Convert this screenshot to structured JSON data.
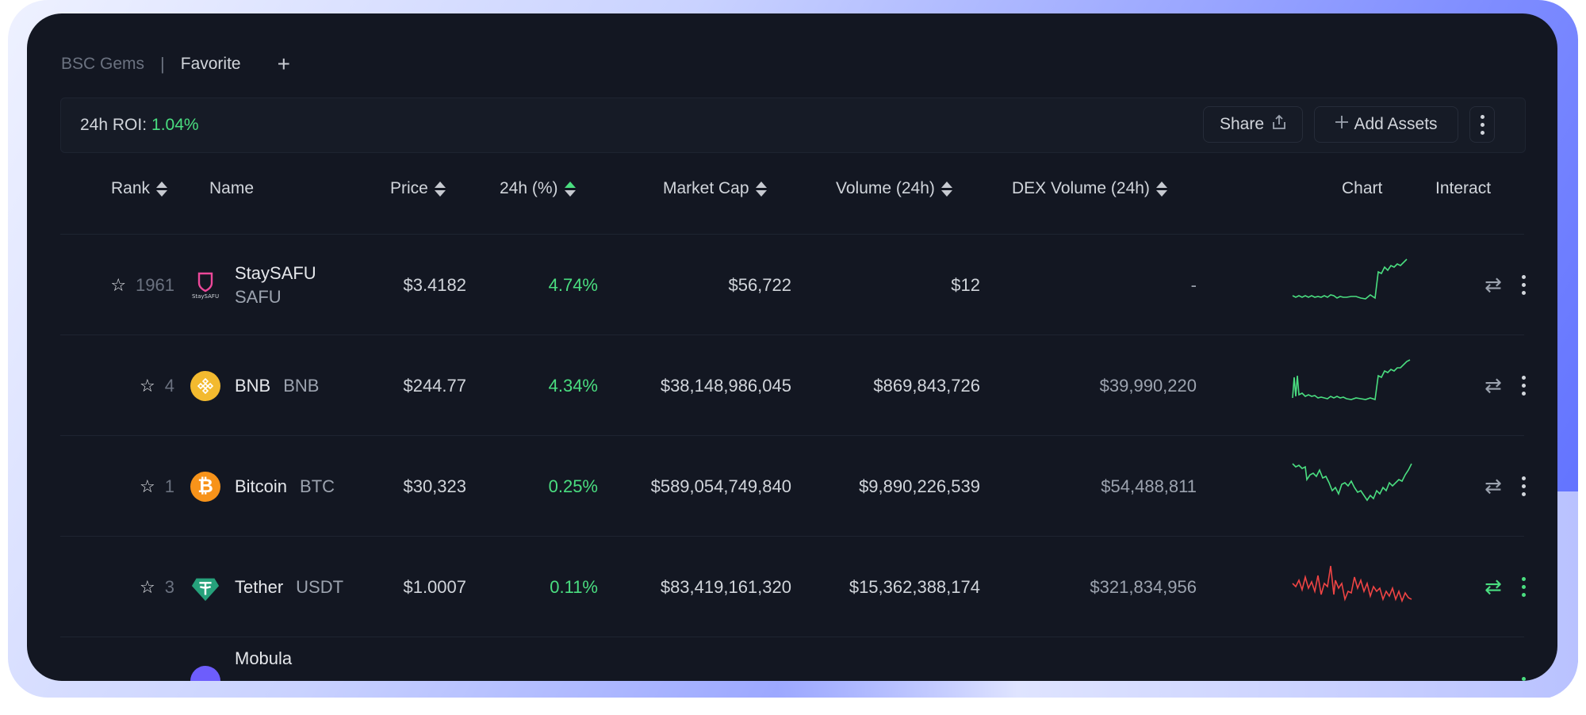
{
  "tabs": [
    "BSC Gems",
    "Favorite"
  ],
  "tab_separator": "|",
  "tab_add": "+",
  "toolbar": {
    "roi_label": "24h ROI:",
    "roi_value": "1.04%",
    "share_label": "Share",
    "add_assets_label": "Add Assets"
  },
  "columns": [
    "Rank",
    "Name",
    "Price",
    "24h (%)",
    "Market Cap",
    "Volume (24h)",
    "DEX Volume (24h)",
    "Chart",
    "Interact"
  ],
  "rows": [
    {
      "rank": "1961",
      "name": "StaySAFU",
      "symbol": "SAFU",
      "price": "$3.4182",
      "change": "4.74%",
      "market_cap": "$56,722",
      "volume": "$12",
      "dex_volume": "-",
      "trend": "up",
      "icon": "staysafu-shield-icon"
    },
    {
      "rank": "4",
      "name": "BNB",
      "symbol": "BNB",
      "price": "$244.77",
      "change": "4.34%",
      "market_cap": "$38,148,986,045",
      "volume": "$869,843,726",
      "dex_volume": "$39,990,220",
      "trend": "up",
      "icon": "bnb-icon"
    },
    {
      "rank": "1",
      "name": "Bitcoin",
      "symbol": "BTC",
      "price": "$30,323",
      "change": "0.25%",
      "market_cap": "$589,054,749,840",
      "volume": "$9,890,226,539",
      "dex_volume": "$54,488,811",
      "trend": "up",
      "icon": "bitcoin-icon"
    },
    {
      "rank": "3",
      "name": "Tether",
      "symbol": "USDT",
      "price": "$1.0007",
      "change": "0.11%",
      "market_cap": "$83,419,161,320",
      "volume": "$15,362,388,174",
      "dex_volume": "$321,834,956",
      "trend": "down",
      "icon": "tether-icon"
    },
    {
      "name_partial": "Mobula",
      "icon": "mobula-icon"
    }
  ],
  "colors": {
    "positive": "#4ade80",
    "negative": "#ef4444",
    "background": "#131722"
  }
}
